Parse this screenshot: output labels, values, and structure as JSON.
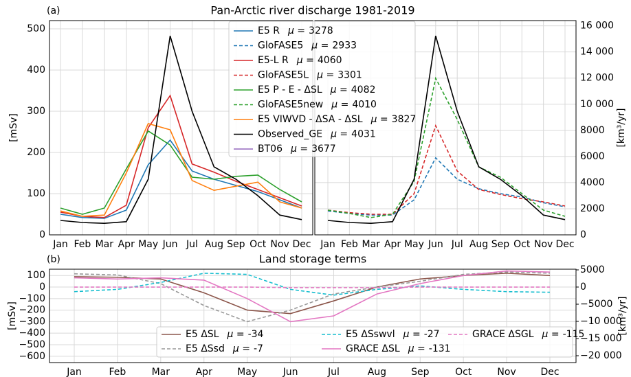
{
  "chart_data": [
    {
      "type": "line",
      "label": "(a)",
      "title": "Pan-Arctic river discharge 1981-2019",
      "ylabel": "[mSv]",
      "y2label": "[km³/yr]",
      "mean_symbol": "μ =",
      "grid": true,
      "categories": [
        "Jan",
        "Feb",
        "Mar",
        "Apr",
        "May",
        "Jun",
        "Jul",
        "Aug",
        "Sep",
        "Oct",
        "Nov",
        "Dec"
      ],
      "ylim": [
        0,
        520
      ],
      "yticks": [
        0,
        100,
        200,
        300,
        400,
        500
      ],
      "y2lim": [
        0,
        16400
      ],
      "y2ticks": [
        0,
        2000,
        4000,
        6000,
        8000,
        {
          "value": 10000,
          "label": "10 000"
        },
        {
          "value": 12000,
          "label": "12 000"
        },
        {
          "value": 14000,
          "label": "14 000"
        },
        {
          "value": 16000,
          "label": "16 000"
        }
      ],
      "series": [
        {
          "name": "E5 R",
          "mean": 3278,
          "color": "#1f77b4",
          "linestyle": "solid",
          "panel": "left",
          "values": [
            50,
            42,
            40,
            60,
            170,
            230,
            155,
            135,
            120,
            105,
            85,
            65
          ]
        },
        {
          "name": "GloFASE5",
          "mean": 2933,
          "color": "#1f77b4",
          "linestyle": "dashed",
          "panel": "right",
          "values": [
            58,
            52,
            48,
            48,
            85,
            187,
            135,
            112,
            100,
            92,
            78,
            68
          ]
        },
        {
          "name": "E5-L R",
          "mean": 4060,
          "color": "#d62728",
          "linestyle": "solid",
          "panel": "left",
          "values": [
            55,
            45,
            42,
            72,
            260,
            338,
            172,
            152,
            130,
            110,
            90,
            70
          ]
        },
        {
          "name": "GloFASE5L",
          "mean": 3301,
          "color": "#d62728",
          "linestyle": "dashed",
          "panel": "right",
          "values": [
            60,
            54,
            50,
            50,
            100,
            265,
            155,
            110,
            98,
            88,
            80,
            70
          ]
        },
        {
          "name": "E5 P - E - ΔSL",
          "mean": 4082,
          "color": "#2ca02c",
          "linestyle": "solid",
          "panel": "left",
          "values": [
            65,
            50,
            65,
            160,
            252,
            218,
            140,
            135,
            142,
            145,
            110,
            80
          ]
        },
        {
          "name": "GloFASE5new",
          "mean": 4010,
          "color": "#2ca02c",
          "linestyle": "dashed",
          "panel": "right",
          "values": [
            60,
            52,
            42,
            50,
            130,
            380,
            280,
            165,
            140,
            100,
            60,
            45
          ]
        },
        {
          "name": "E5 VIWVD - ΔSA - ΔSL",
          "mean": 3827,
          "color": "#ff7f0e",
          "linestyle": "solid",
          "panel": "left",
          "values": [
            58,
            45,
            48,
            150,
            270,
            255,
            132,
            108,
            118,
            128,
            80,
            65
          ]
        },
        {
          "name": "Observed_GE",
          "mean": 4031,
          "color": "#000000",
          "linestyle": "solid",
          "panel": "both",
          "values": [
            35,
            30,
            28,
            32,
            135,
            483,
            300,
            165,
            135,
            95,
            48,
            37
          ]
        },
        {
          "name": "BT06",
          "mean": 3677,
          "color": "#9467bd",
          "linestyle": "solid",
          "panel": "none"
        }
      ]
    },
    {
      "type": "line",
      "label": "(b)",
      "title": "Land storage terms",
      "ylabel": "[mSv]",
      "y2label": "[km³/yr]",
      "mean_symbol": "μ =",
      "grid": true,
      "categories": [
        "Jan",
        "Feb",
        "Mar",
        "Apr",
        "May",
        "Jun",
        "Jul",
        "Aug",
        "Sep",
        "Oct",
        "Nov",
        "Dec"
      ],
      "ylim": [
        -655,
        155
      ],
      "yticks": [
        100,
        0,
        {
          "value": -100,
          "label": "−100"
        },
        {
          "value": -200,
          "label": "−200"
        },
        {
          "value": -300,
          "label": "−300"
        },
        {
          "value": -400,
          "label": "−400"
        },
        {
          "value": -500,
          "label": "−500"
        },
        {
          "value": -600,
          "label": "−600"
        }
      ],
      "y2lim": [
        -22000,
        5200
      ],
      "y2ticks": [
        5000,
        0,
        {
          "value": -5000,
          "label": "−5000"
        },
        {
          "value": -10000,
          "label": "−10 000"
        },
        {
          "value": -15000,
          "label": "−15 000"
        },
        {
          "value": -20000,
          "label": "−20 000"
        }
      ],
      "series": [
        {
          "name": "E5 ΔSL",
          "mean": -34,
          "color": "#8c564b",
          "linestyle": "solid",
          "values": [
            90,
            85,
            70,
            -50,
            -200,
            -230,
            -120,
            0,
            70,
            100,
            120,
            100
          ]
        },
        {
          "name": "E5 ΔSsd",
          "mean": -7,
          "color": "#999999",
          "linestyle": "dashed",
          "values": [
            115,
            105,
            30,
            -160,
            -300,
            -200,
            -60,
            0,
            50,
            110,
            130,
            120
          ]
        },
        {
          "name": "E5 ΔSswvl",
          "mean": -27,
          "color": "#17becf",
          "linestyle": "dashed",
          "values": [
            -40,
            -20,
            40,
            120,
            110,
            -20,
            -70,
            -20,
            10,
            -20,
            -40,
            -45
          ]
        },
        {
          "name": "GRACE ΔSL",
          "mean": -131,
          "color": "#e377c2",
          "linestyle": "solid",
          "values": [
            80,
            70,
            80,
            60,
            -100,
            -300,
            -250,
            -60,
            30,
            100,
            140,
            130
          ]
        },
        {
          "name": "GRACE ΔSGL",
          "mean": -115,
          "color": "#e377c2",
          "linestyle": "dashed",
          "values": [
            0,
            0,
            0,
            0,
            0,
            -5,
            -5,
            -5,
            0,
            0,
            0,
            0
          ]
        }
      ]
    }
  ]
}
